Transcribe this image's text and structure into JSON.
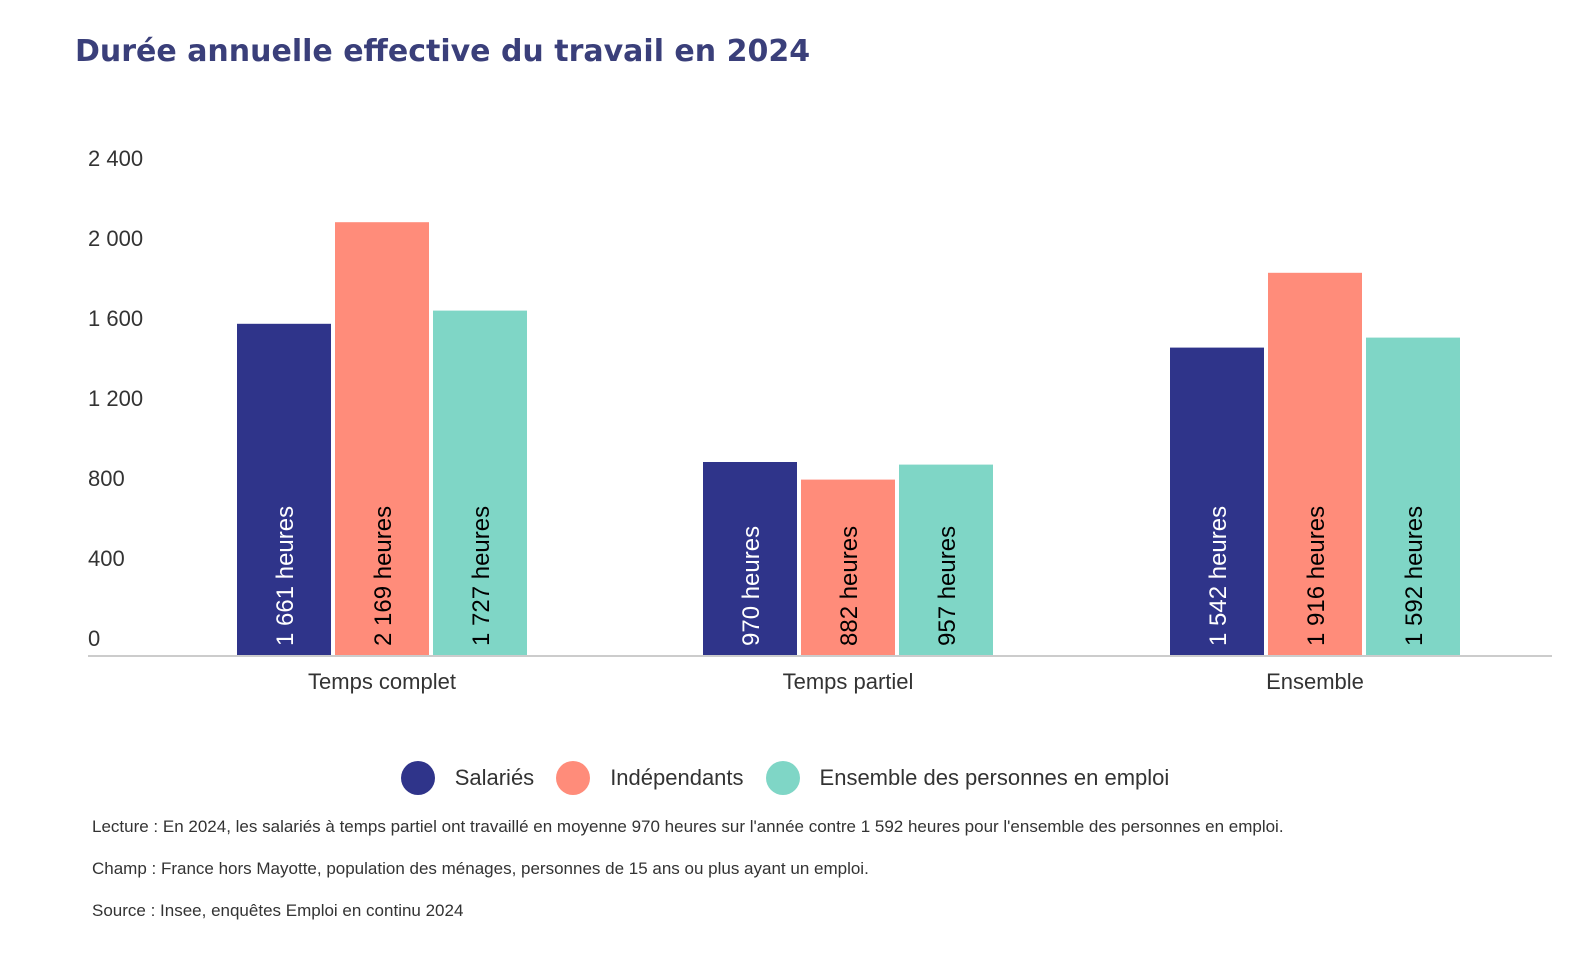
{
  "title": "Durée annuelle effective du travail en 2024",
  "chart_data": {
    "type": "bar",
    "title": "Durée annuelle effective du travail en 2024",
    "categories": [
      "Temps complet",
      "Temps partiel",
      "Ensemble"
    ],
    "series": [
      {
        "name": "Salariés",
        "color": "#2f348a",
        "values": [
          1661,
          970,
          1542
        ],
        "labels": [
          "1 661 heures",
          "970 heures",
          "1 542 heures"
        ],
        "label_color": "#ffffff"
      },
      {
        "name": "Indépendants",
        "color": "#ff8c7a",
        "values": [
          2169,
          882,
          1916
        ],
        "labels": [
          "2 169 heures",
          "882 heures",
          "1 916 heures"
        ],
        "label_color": "#000000"
      },
      {
        "name": "Ensemble des personnes en emploi",
        "color": "#7fd6c6",
        "values": [
          1727,
          957,
          1592
        ],
        "labels": [
          "1 727 heures",
          "957 heures",
          "1 592 heures"
        ],
        "label_color": "#000000"
      }
    ],
    "yticks": [
      0,
      400,
      800,
      1200,
      1600,
      2000,
      2400
    ],
    "ytick_labels": [
      "0",
      "400",
      "800",
      "1 200",
      "1 600",
      "2 000",
      "2 400"
    ],
    "ylim": [
      0,
      2480
    ],
    "xlabel": "",
    "ylabel": "",
    "grid": false,
    "legend_position": "bottom"
  },
  "notes": {
    "lecture": "Lecture : En 2024, les salariés à temps partiel ont travaillé en moyenne 970 heures sur l'année contre 1 592 heures pour l'ensemble des personnes en emploi.",
    "champ": "Champ : France hors Mayotte, population des ménages, personnes de 15 ans ou plus ayant un emploi.",
    "source": "Source : Insee, enquêtes Emploi en continu 2024"
  }
}
